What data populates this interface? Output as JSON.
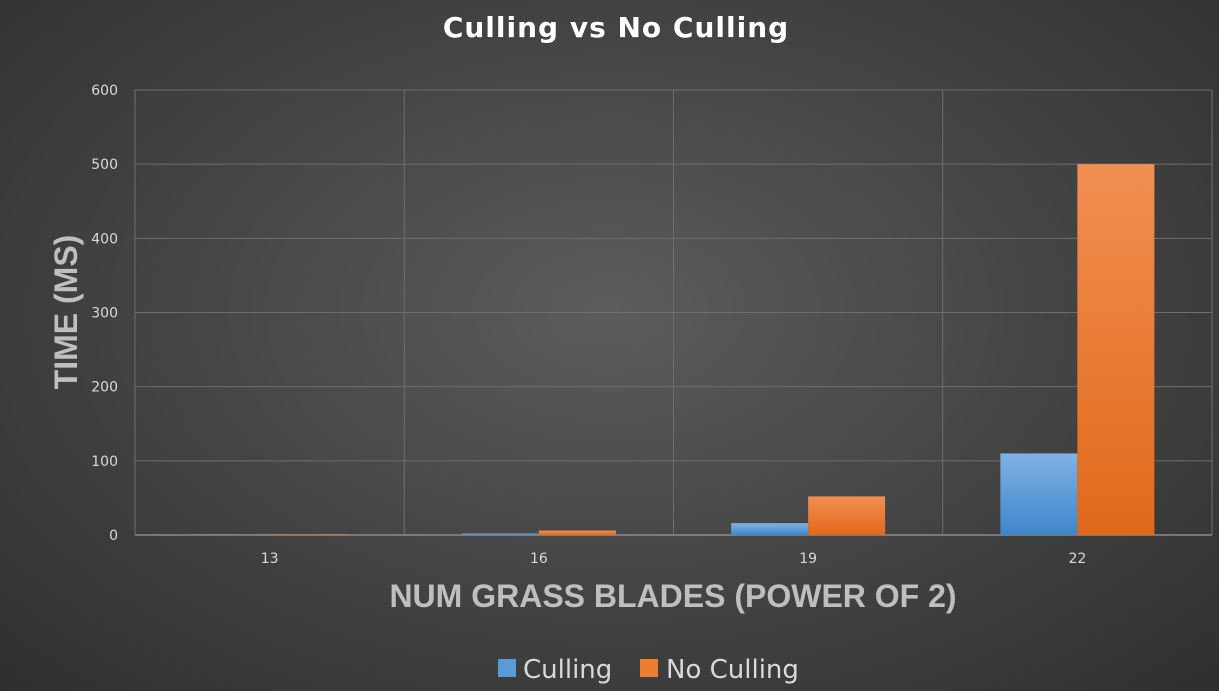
{
  "colors": {
    "culling": "#5b9bd5",
    "no_culling": "#ed7d31",
    "gridline": "#6e6e6e",
    "axis_line": "#8c8c8c"
  },
  "chart_data": {
    "type": "bar",
    "title": "Culling vs No Culling",
    "xlabel": "NUM GRASS BLADES (POWER OF 2)",
    "ylabel": "TIME (MS)",
    "categories": [
      "13",
      "16",
      "19",
      "22"
    ],
    "series": [
      {
        "name": "Culling",
        "values": [
          0.3,
          2,
          16,
          110
        ]
      },
      {
        "name": "No Culling",
        "values": [
          0.8,
          6,
          52,
          500
        ]
      }
    ],
    "ylim": [
      0,
      600
    ],
    "yticks": [
      0,
      100,
      200,
      300,
      400,
      500,
      600
    ],
    "grid": true,
    "legend_position": "bottom"
  }
}
